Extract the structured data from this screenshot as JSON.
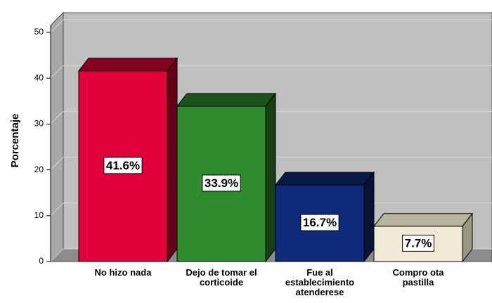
{
  "chart_data": {
    "type": "bar3d",
    "y_label": "Porcentaje",
    "categories": [
      "No hizo nada",
      "Dejo de tomar el corticoide",
      "Fue al establecimiento atenderese",
      "Compro ota pastilla"
    ],
    "values": [
      41.6,
      33.9,
      16.7,
      7.7
    ],
    "value_labels": [
      "41.6%",
      "33.9%",
      "16.7%",
      "7.7%"
    ],
    "colors": [
      "#e0003a",
      "#2e8b2e",
      "#0f2a78",
      "#f0ead6"
    ],
    "ylim": [
      0,
      50
    ],
    "yticks": [
      0,
      10,
      20,
      30,
      40,
      50
    ],
    "grid": true
  }
}
